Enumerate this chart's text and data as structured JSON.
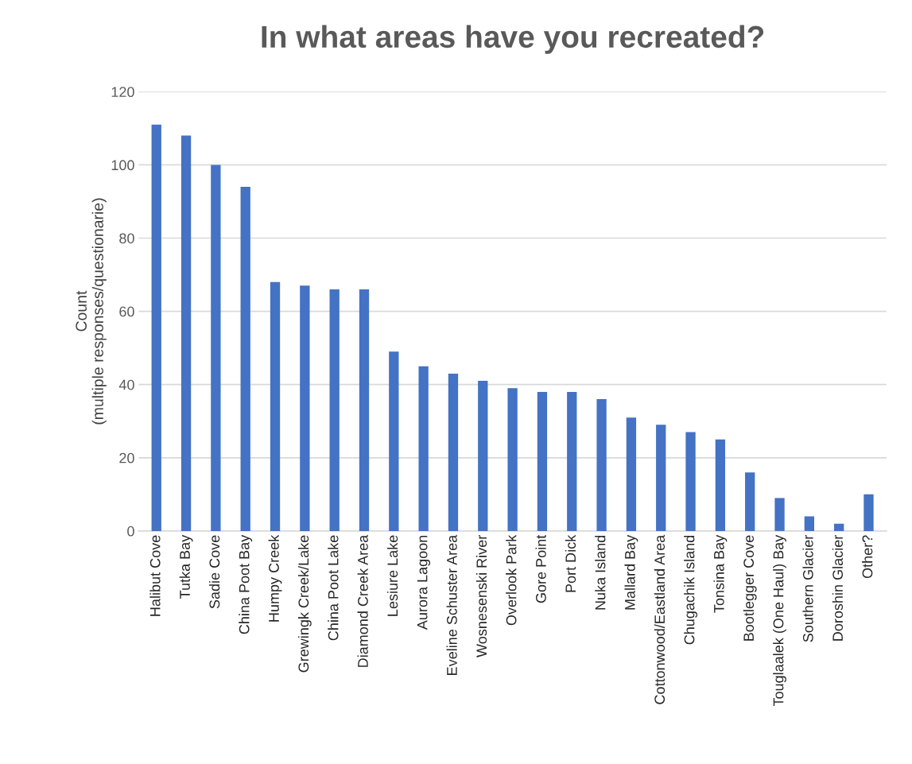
{
  "chart_data": {
    "type": "bar",
    "title": "In what areas have you recreated?",
    "ylabel": "Count\n(multiple responses/questionarie)",
    "categories": [
      "Halibut Cove",
      "Tutka Bay",
      "Sadie Cove",
      "China Poot Bay",
      "Humpy Creek",
      "Grewingk Creek/Lake",
      "China Poot Lake",
      "Diamond Creek Area",
      "Lesiure Lake",
      "Aurora Lagoon",
      "Eveline Schuster Area",
      "Wosnesenski River",
      "Overlook Park",
      "Gore Point",
      "Port Dick",
      "Nuka Island",
      "Mallard Bay",
      "Cottonwood/Eastland Area",
      "Chugachik Island",
      "Tonsina Bay",
      "Bootlegger Cove",
      "Touglaalek (One Haul) Bay",
      "Southern Glacier",
      "Doroshin Glacier",
      "Other?"
    ],
    "values": [
      111,
      108,
      100,
      94,
      68,
      67,
      66,
      66,
      49,
      45,
      43,
      41,
      39,
      38,
      38,
      36,
      31,
      29,
      27,
      25,
      16,
      9,
      4,
      2,
      10
    ],
    "color": "#4472c4",
    "ylim": [
      0,
      120
    ],
    "yticks": [
      0,
      20,
      40,
      60,
      80,
      100,
      120
    ],
    "grid": "y",
    "legend": false
  }
}
